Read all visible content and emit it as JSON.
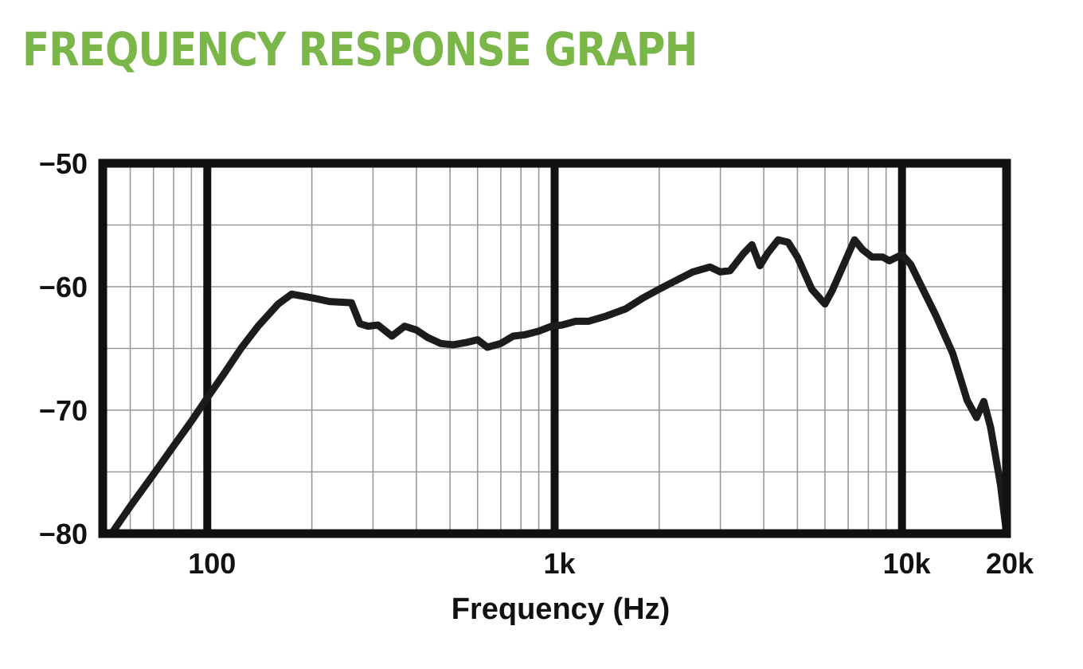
{
  "title": "FREQUENCY RESPONSE GRAPH",
  "colors": {
    "title": "#7ab648",
    "curve": "#1c1c1c",
    "frame": "#111111",
    "grid": "#999999"
  },
  "chart_data": {
    "type": "line",
    "title": "FREQUENCY RESPONSE GRAPH",
    "xlabel": "Frequency (Hz)",
    "ylabel": "",
    "xscale": "log",
    "xlim": [
      50,
      20000
    ],
    "ylim": [
      -80,
      -50
    ],
    "grid": true,
    "legend": "none",
    "x_major_ticks": [
      {
        "value": 100,
        "label": "100"
      },
      {
        "value": 1000,
        "label": "1k"
      },
      {
        "value": 10000,
        "label": "10k"
      },
      {
        "value": 20000,
        "label": "20k"
      }
    ],
    "y_ticks": [
      {
        "value": -50,
        "label": "−50"
      },
      {
        "value": -60,
        "label": "−60"
      },
      {
        "value": -70,
        "label": "−70"
      },
      {
        "value": -80,
        "label": "−80"
      }
    ],
    "series": [
      {
        "x": [
          53,
          60,
          70,
          80,
          90,
          100,
          112,
          125,
          140,
          160,
          175,
          200,
          225,
          260,
          275,
          290,
          310,
          340,
          370,
          400,
          430,
          470,
          510,
          560,
          600,
          640,
          700,
          760,
          820,
          900,
          980,
          1050,
          1150,
          1250,
          1400,
          1600,
          1800,
          2000,
          2200,
          2500,
          2800,
          3000,
          3200,
          3500,
          3700,
          3900,
          4100,
          4400,
          4700,
          5000,
          5500,
          6000,
          6300,
          6700,
          7300,
          7700,
          8200,
          8800,
          9200,
          10000,
          10600,
          11300,
          12500,
          14000,
          15400,
          16400,
          17200,
          18000,
          19200,
          20000
        ],
        "y": [
          -80,
          -77.8,
          -75.2,
          -72.9,
          -70.9,
          -69,
          -67,
          -65,
          -63.2,
          -61.4,
          -60.6,
          -60.9,
          -61.2,
          -61.3,
          -63,
          -63.2,
          -63.1,
          -64,
          -63.2,
          -63.5,
          -64.1,
          -64.6,
          -64.7,
          -64.5,
          -64.3,
          -64.9,
          -64.6,
          -64,
          -63.9,
          -63.6,
          -63.2,
          -63.1,
          -62.8,
          -62.8,
          -62.4,
          -61.8,
          -60.9,
          -60.2,
          -59.6,
          -58.8,
          -58.4,
          -58.8,
          -58.7,
          -57.3,
          -56.6,
          -58.3,
          -57.3,
          -56.2,
          -56.4,
          -57.6,
          -60.2,
          -61.4,
          -60.3,
          -58.6,
          -56.2,
          -57,
          -57.6,
          -57.6,
          -57.9,
          -57.4,
          -58.2,
          -59.8,
          -62.3,
          -65.4,
          -69.2,
          -70.6,
          -69.3,
          -71.4,
          -76,
          -80
        ]
      }
    ]
  }
}
